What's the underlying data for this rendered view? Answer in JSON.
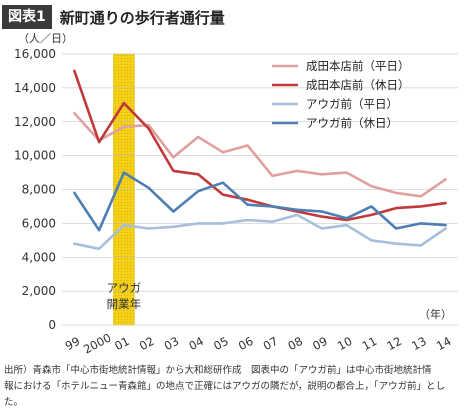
{
  "figure": {
    "badge": "図表1",
    "title": "新町通りの歩行者通行量"
  },
  "caption": {
    "lines": [
      "出所）青森市「中心市街地統計情報」から大和総研作成　図表中の「アウガ前」は中心市街地統計情",
      "報における「ホテルニュー青森館」の地点で正確にはアウガの隣だが，説明の都合上，「アウガ前」とし",
      "た。"
    ]
  },
  "chart_data": {
    "type": "line",
    "ylabel": "（人／日）",
    "xunit": "（年）",
    "categories": [
      "99",
      "2000",
      "01",
      "02",
      "03",
      "04",
      "05",
      "06",
      "07",
      "08",
      "09",
      "10",
      "11",
      "12",
      "13",
      "14"
    ],
    "ylim": [
      0,
      16000
    ],
    "yticks": [
      0,
      2000,
      4000,
      6000,
      8000,
      10000,
      12000,
      14000,
      16000
    ],
    "ytick_labels": [
      "0",
      "2,000",
      "4,000",
      "6,000",
      "8,000",
      "10,000",
      "12,000",
      "14,000",
      "16,000"
    ],
    "grid": true,
    "legend_position": "top-right",
    "highlight": {
      "category": "01",
      "label_line1": "アウガ",
      "label_line2": "開業年",
      "color": "#f5d21c"
    },
    "series": [
      {
        "name": "成田本店前（平日）",
        "color": "#e0a0a0",
        "values": [
          12500,
          10900,
          11700,
          11800,
          9900,
          11100,
          10200,
          10600,
          8800,
          9100,
          8900,
          9000,
          8200,
          7800,
          7600,
          8600
        ]
      },
      {
        "name": "成田本店前（休日）",
        "color": "#c0393b",
        "values": [
          15000,
          10800,
          13100,
          11600,
          9100,
          8900,
          7700,
          7400,
          7000,
          6700,
          6400,
          6200,
          6500,
          6900,
          7000,
          7200
        ]
      },
      {
        "name": "アウガ前（平日）",
        "color": "#a6bfdc",
        "values": [
          4800,
          4500,
          5900,
          5700,
          5800,
          6000,
          6000,
          6200,
          6100,
          6500,
          5700,
          5900,
          5000,
          4800,
          4700,
          5700
        ]
      },
      {
        "name": "アウガ前（休日）",
        "color": "#4d7eb4",
        "values": [
          7800,
          5600,
          9000,
          8100,
          6700,
          7900,
          8400,
          7100,
          7000,
          6800,
          6700,
          6300,
          7000,
          5700,
          6000,
          5900
        ]
      }
    ]
  }
}
